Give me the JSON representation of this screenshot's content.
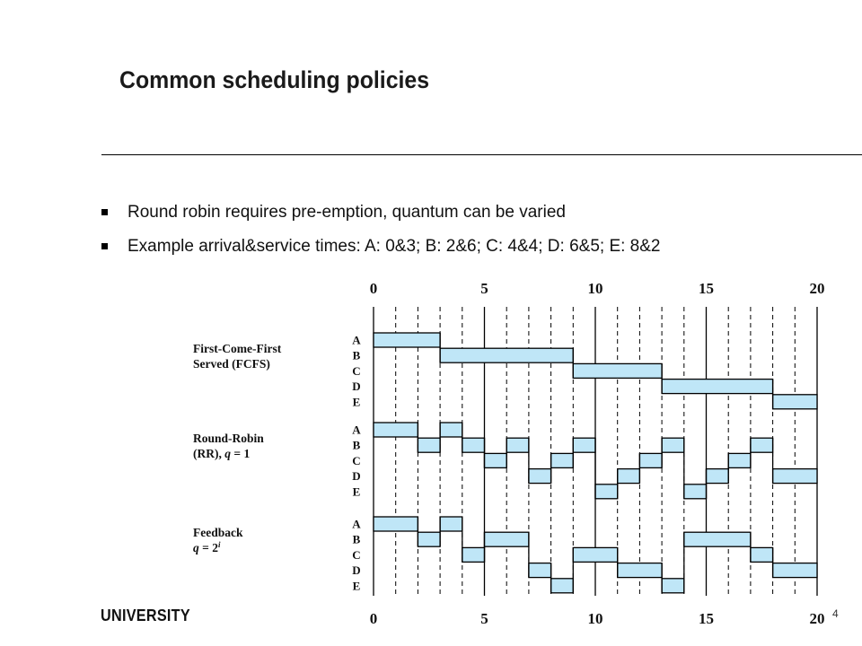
{
  "slide": {
    "title": "Common scheduling policies",
    "bullets": [
      "Round robin requires pre-emption, quantum can be varied",
      "Example arrival&service times: A: 0&3; B: 2&6; C: 4&4; D: 6&5; E: 8&2"
    ],
    "footer_logo": "UNIVERSITY",
    "page_number": "4"
  },
  "colors": {
    "bar_fill": "#bfe6f7",
    "line": "#000000"
  },
  "timeline": {
    "min": 0,
    "max": 20,
    "tick_labels": [
      "0",
      "5",
      "10",
      "15",
      "20"
    ],
    "processes": [
      "A",
      "B",
      "C",
      "D",
      "E"
    ]
  },
  "policies": [
    {
      "label_lines": [
        "First-Come-First",
        "Served (FCFS)"
      ],
      "segments": [
        {
          "p": "A",
          "start": 0,
          "end": 3
        },
        {
          "p": "B",
          "start": 3,
          "end": 9
        },
        {
          "p": "C",
          "start": 9,
          "end": 13
        },
        {
          "p": "D",
          "start": 13,
          "end": 18
        },
        {
          "p": "E",
          "start": 18,
          "end": 20
        }
      ]
    },
    {
      "label_lines": [
        "Round-Robin",
        "(RR), q = 1"
      ],
      "segments": [
        {
          "p": "A",
          "start": 0,
          "end": 2
        },
        {
          "p": "B",
          "start": 2,
          "end": 3
        },
        {
          "p": "A",
          "start": 3,
          "end": 4
        },
        {
          "p": "B",
          "start": 4,
          "end": 5
        },
        {
          "p": "C",
          "start": 5,
          "end": 6
        },
        {
          "p": "B",
          "start": 6,
          "end": 7
        },
        {
          "p": "D",
          "start": 7,
          "end": 8
        },
        {
          "p": "C",
          "start": 8,
          "end": 9
        },
        {
          "p": "B",
          "start": 9,
          "end": 10
        },
        {
          "p": "E",
          "start": 10,
          "end": 11
        },
        {
          "p": "D",
          "start": 11,
          "end": 12
        },
        {
          "p": "C",
          "start": 12,
          "end": 13
        },
        {
          "p": "B",
          "start": 13,
          "end": 14
        },
        {
          "p": "E",
          "start": 14,
          "end": 15
        },
        {
          "p": "D",
          "start": 15,
          "end": 16
        },
        {
          "p": "C",
          "start": 16,
          "end": 17
        },
        {
          "p": "B",
          "start": 17,
          "end": 18
        },
        {
          "p": "D",
          "start": 18,
          "end": 20
        }
      ]
    },
    {
      "label_lines": [
        "Feedback",
        "q = 2^i"
      ],
      "segments": [
        {
          "p": "A",
          "start": 0,
          "end": 2
        },
        {
          "p": "B",
          "start": 2,
          "end": 3
        },
        {
          "p": "A",
          "start": 3,
          "end": 4
        },
        {
          "p": "C",
          "start": 4,
          "end": 5
        },
        {
          "p": "B",
          "start": 5,
          "end": 7
        },
        {
          "p": "D",
          "start": 7,
          "end": 8
        },
        {
          "p": "E",
          "start": 8,
          "end": 9
        },
        {
          "p": "C",
          "start": 9,
          "end": 11
        },
        {
          "p": "D",
          "start": 11,
          "end": 13
        },
        {
          "p": "E",
          "start": 13,
          "end": 14
        },
        {
          "p": "B",
          "start": 14,
          "end": 17
        },
        {
          "p": "C",
          "start": 17,
          "end": 18
        },
        {
          "p": "D",
          "start": 18,
          "end": 20
        }
      ]
    }
  ]
}
